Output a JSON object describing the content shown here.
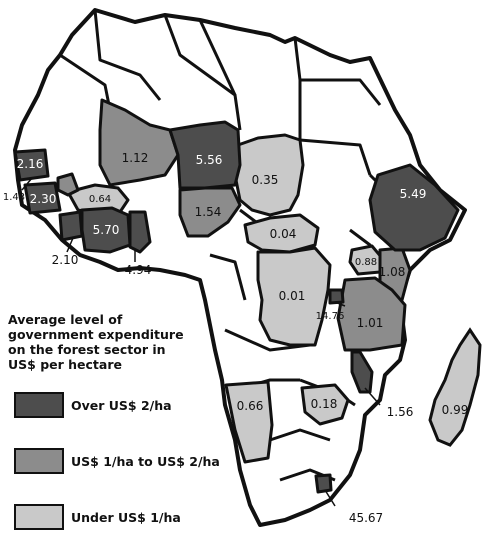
{
  "colors": {
    "high": "#4d4d4d",
    "mid": "#8c8c8c",
    "low": "#c9c9c9",
    "none": "#ffffff",
    "border": "#111111"
  },
  "legend": {
    "title": "Average level of\ngovernment expenditure\non the forest sector in\nUS$ per hectare",
    "items": [
      {
        "label": "Over US$ 2/ha",
        "category": "high"
      },
      {
        "label": "US$ 1/ha to US$ 2/ha",
        "category": "mid"
      },
      {
        "label": "Under US$ 1/ha",
        "category": "low"
      }
    ]
  },
  "values": {
    "gambia": "2.16",
    "senegal_small": "1.43",
    "guinea_bissau": "2.30",
    "guinea": "0.64",
    "sierra_leone": "2.10",
    "cote_divoire": "5.70",
    "ghana": "4.94",
    "mali": "1.12",
    "niger": "5.56",
    "chad": "0.35",
    "nigeria": "1.54",
    "car": "0.04",
    "ethiopia": "5.49",
    "uganda": "0.88",
    "kenya": "1.08",
    "drc": "0.01",
    "rwanda": "14.76",
    "tanzania": "1.01",
    "malawi": "1.56",
    "namibia": "0.66",
    "zimbabwe": "0.18",
    "madagascar": "0.99",
    "swaziland": "45.67"
  }
}
